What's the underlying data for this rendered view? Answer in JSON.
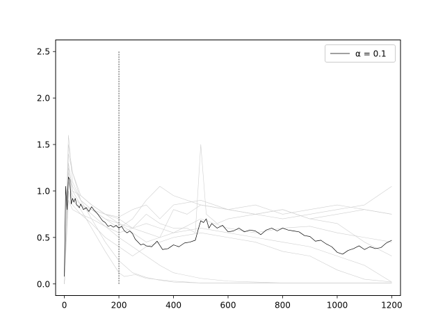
{
  "chart_data": {
    "type": "line",
    "title": "",
    "xlabel": "",
    "ylabel": "",
    "xlim": [
      -32,
      1232
    ],
    "ylim": [
      -0.125,
      2.625
    ],
    "xticks": [
      0,
      200,
      400,
      600,
      800,
      1000,
      1200
    ],
    "yticks": [
      0.0,
      0.5,
      1.0,
      1.5,
      2.0,
      2.5
    ],
    "xtick_labels": [
      "0",
      "200",
      "400",
      "600",
      "800",
      "1000",
      "1200"
    ],
    "ytick_labels": [
      "0.0",
      "0.5",
      "1.0",
      "1.5",
      "2.0",
      "2.5"
    ],
    "grid": false,
    "legend": {
      "position": "upper right",
      "entries": [
        "α = 0.1"
      ]
    },
    "vline": {
      "x": 200,
      "y_range": [
        0.0,
        2.5
      ],
      "style": "dashed"
    },
    "colors": {
      "main": "#000000",
      "background_series": "#cfcfcf",
      "vline": "#000000"
    },
    "series": [
      {
        "name": "α = 0.1",
        "x": [
          0,
          5,
          10,
          15,
          20,
          25,
          30,
          35,
          40,
          45,
          50,
          55,
          60,
          70,
          80,
          90,
          100,
          110,
          120,
          130,
          140,
          150,
          160,
          170,
          180,
          190,
          200,
          210,
          220,
          230,
          240,
          250,
          260,
          270,
          280,
          290,
          300,
          320,
          340,
          360,
          380,
          400,
          420,
          440,
          460,
          480,
          490,
          500,
          510,
          520,
          530,
          540,
          560,
          580,
          600,
          620,
          640,
          660,
          680,
          700,
          720,
          740,
          760,
          780,
          800,
          820,
          840,
          860,
          880,
          900,
          920,
          940,
          960,
          980,
          1000,
          1020,
          1040,
          1060,
          1080,
          1100,
          1120,
          1140,
          1160,
          1180,
          1200
        ],
        "values": [
          0.08,
          1.05,
          0.8,
          1.15,
          1.12,
          0.86,
          0.92,
          0.88,
          0.92,
          0.85,
          0.84,
          0.82,
          0.86,
          0.8,
          0.82,
          0.78,
          0.83,
          0.79,
          0.76,
          0.72,
          0.68,
          0.66,
          0.62,
          0.63,
          0.61,
          0.63,
          0.6,
          0.62,
          0.57,
          0.55,
          0.57,
          0.54,
          0.48,
          0.45,
          0.42,
          0.43,
          0.41,
          0.4,
          0.46,
          0.37,
          0.38,
          0.42,
          0.4,
          0.44,
          0.45,
          0.47,
          0.58,
          0.68,
          0.66,
          0.7,
          0.6,
          0.65,
          0.6,
          0.63,
          0.56,
          0.57,
          0.6,
          0.56,
          0.58,
          0.57,
          0.53,
          0.58,
          0.6,
          0.57,
          0.6,
          0.58,
          0.57,
          0.56,
          0.52,
          0.51,
          0.46,
          0.47,
          0.43,
          0.4,
          0.34,
          0.32,
          0.36,
          0.38,
          0.41,
          0.37,
          0.4,
          0.38,
          0.39,
          0.44,
          0.47
        ]
      }
    ],
    "background_series": [
      {
        "x": [
          0,
          15,
          30,
          60,
          100,
          150,
          200,
          250,
          300,
          350,
          400,
          500,
          600,
          800,
          1000,
          1200
        ],
        "values": [
          0.0,
          1.5,
          1.2,
          0.9,
          0.7,
          0.45,
          0.25,
          0.12,
          0.07,
          0.04,
          0.02,
          0.01,
          0.01,
          0.01,
          0.01,
          0.01
        ]
      },
      {
        "x": [
          0,
          15,
          30,
          60,
          100,
          150,
          200,
          220,
          260,
          300,
          400,
          500,
          600,
          700,
          800,
          900,
          1000,
          1100,
          1200
        ],
        "values": [
          0.0,
          1.1,
          0.9,
          0.8,
          0.6,
          0.35,
          0.12,
          0.08,
          0.1,
          0.06,
          0.03,
          0.01,
          0.01,
          0.01,
          0.01,
          0.01,
          0.01,
          0.01,
          0.01
        ]
      },
      {
        "x": [
          0,
          15,
          30,
          60,
          100,
          150,
          200,
          250,
          300,
          350,
          400,
          450,
          480,
          500,
          520,
          560,
          600,
          700,
          800,
          900,
          1000,
          1100,
          1200
        ],
        "values": [
          0.0,
          1.3,
          1.0,
          0.95,
          0.85,
          0.75,
          0.7,
          0.6,
          0.75,
          0.65,
          0.6,
          0.6,
          0.55,
          1.5,
          0.75,
          0.65,
          0.7,
          0.75,
          0.8,
          0.7,
          0.75,
          0.8,
          0.75
        ]
      },
      {
        "x": [
          0,
          15,
          30,
          60,
          100,
          150,
          200,
          250,
          300,
          350,
          400,
          500,
          600,
          700,
          800,
          900,
          1000,
          1100,
          1200
        ],
        "values": [
          0.0,
          1.6,
          1.1,
          0.9,
          0.8,
          0.75,
          0.72,
          0.8,
          0.85,
          0.7,
          0.85,
          0.9,
          0.8,
          0.75,
          0.7,
          0.75,
          0.8,
          0.85,
          1.05
        ]
      },
      {
        "x": [
          0,
          15,
          30,
          60,
          100,
          150,
          200,
          250,
          300,
          350,
          400,
          500,
          600,
          700,
          800,
          900,
          1000,
          1100,
          1200
        ],
        "values": [
          0.0,
          0.9,
          0.8,
          0.75,
          0.7,
          0.62,
          0.55,
          0.6,
          0.55,
          0.5,
          0.55,
          0.6,
          0.55,
          0.5,
          0.45,
          0.4,
          0.3,
          0.2,
          0.02
        ]
      },
      {
        "x": [
          0,
          15,
          30,
          60,
          100,
          150,
          200,
          250,
          300,
          350,
          400,
          450,
          500,
          600,
          700,
          800,
          900,
          1000,
          1100,
          1200
        ],
        "values": [
          0.0,
          1.2,
          1.0,
          0.85,
          0.8,
          0.7,
          0.65,
          0.55,
          0.45,
          0.5,
          0.8,
          0.75,
          0.85,
          0.8,
          0.75,
          0.8,
          0.7,
          0.65,
          0.45,
          0.3
        ]
      },
      {
        "x": [
          0,
          15,
          30,
          60,
          100,
          150,
          200,
          250,
          300,
          350,
          400,
          500,
          600,
          700,
          800,
          900,
          1000,
          1100,
          1200
        ],
        "values": [
          0.0,
          1.4,
          1.2,
          0.95,
          0.85,
          0.75,
          0.65,
          0.6,
          0.65,
          0.6,
          0.55,
          0.7,
          0.6,
          0.55,
          0.6,
          0.62,
          0.55,
          0.5,
          0.45
        ]
      },
      {
        "x": [
          0,
          15,
          30,
          60,
          100,
          150,
          200,
          250,
          300,
          350,
          400,
          500,
          600,
          700,
          800,
          900,
          1000,
          1100,
          1200
        ],
        "values": [
          0.0,
          1.0,
          0.85,
          0.75,
          0.65,
          0.5,
          0.4,
          0.3,
          0.4,
          0.45,
          0.5,
          0.55,
          0.5,
          0.45,
          0.35,
          0.3,
          0.15,
          0.05,
          0.02
        ]
      },
      {
        "x": [
          0,
          15,
          30,
          60,
          100,
          150,
          200,
          250,
          300,
          350,
          400,
          500,
          600,
          700,
          800,
          900,
          1000,
          1100,
          1200
        ],
        "values": [
          0.0,
          1.25,
          1.05,
          0.9,
          0.8,
          0.7,
          0.6,
          0.7,
          0.9,
          1.05,
          0.95,
          0.85,
          0.8,
          0.85,
          0.75,
          0.8,
          0.85,
          0.8,
          0.75
        ]
      },
      {
        "x": [
          0,
          15,
          30,
          60,
          100,
          150,
          200,
          250,
          300,
          350,
          400,
          500,
          600,
          700,
          800,
          900,
          1000,
          1100,
          1200
        ],
        "values": [
          0.0,
          1.1,
          0.95,
          0.85,
          0.75,
          0.62,
          0.5,
          0.4,
          0.3,
          0.2,
          0.12,
          0.06,
          0.03,
          0.02,
          0.01,
          0.01,
          0.01,
          0.01,
          0.01
        ]
      }
    ]
  }
}
